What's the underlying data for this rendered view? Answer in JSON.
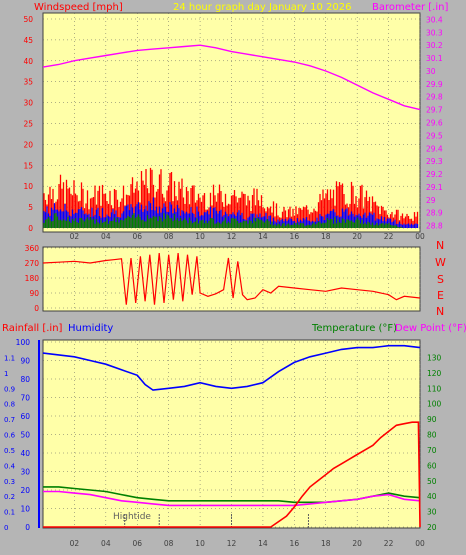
{
  "header": {
    "windspeed_label": "Windspeed [mph]",
    "graph_title": "24 hour graph day   January 10 2026",
    "barometer_label": "Barometer [.in]"
  },
  "wind_dir_compass": [
    "N",
    "W",
    "S",
    "E",
    "N"
  ],
  "bottom_header": {
    "rainfall_label": "Rainfall [.in]",
    "humidity_label": "Humidity",
    "temperature_label": "Temperature (°F)",
    "dewpoint_label": "Dew Point (°F)"
  },
  "annotations": {
    "hightide": "Hightide"
  },
  "colors": {
    "panel_bg": "#ffffa8",
    "frame": "#b5b5b5",
    "barometer": "#ff00ff",
    "wind_gust": "#ff0000",
    "wind_avg": "#0000ff",
    "wind_low": "#008000",
    "wind_dir": "#ff0000",
    "humidity": "#0000ff",
    "temperature": "#008000",
    "dewpoint": "#ff00ff",
    "rainfall": "#ff0000",
    "grid": "#606060"
  },
  "chart_data": [
    {
      "type": "line",
      "id": "wind-barometer",
      "x_ticks": [
        "02",
        "04",
        "06",
        "08",
        "10",
        "12",
        "14",
        "16",
        "18",
        "20",
        "22",
        "00"
      ],
      "y_left_ticks": [
        0,
        5,
        10,
        15,
        20,
        25,
        30,
        35,
        40,
        45,
        50
      ],
      "ylim_left": [
        0,
        50
      ],
      "y_right_ticks": [
        "28.8",
        "28.9",
        "29",
        "29.1",
        "29.2",
        "29.3",
        "29.4",
        "29.5",
        "29.6",
        "29.7",
        "29.8",
        "29.9",
        "30",
        "30.1",
        "30.2",
        "30.3",
        "30.4"
      ],
      "ylim_right": [
        28.75,
        30.45
      ],
      "xlim": [
        0,
        24
      ],
      "series": [
        {
          "name": "Windspeed [mph]",
          "axis": "left",
          "x": [
            0,
            1,
            2,
            3,
            4,
            5,
            6,
            7,
            8,
            9,
            10,
            11,
            12,
            13,
            14,
            15,
            16,
            17,
            18,
            19,
            20,
            21,
            22,
            23,
            24
          ],
          "gust": [
            9,
            10,
            9,
            8,
            9,
            8,
            10,
            12,
            11,
            9,
            8,
            8,
            9,
            7,
            8,
            4,
            4,
            5,
            8,
            9,
            9,
            6,
            4,
            3,
            3
          ],
          "avg": [
            4,
            5,
            4,
            4,
            4,
            4,
            5,
            6,
            5,
            4,
            4,
            4,
            4,
            3,
            3,
            2,
            2,
            2,
            3,
            4,
            4,
            3,
            2,
            1,
            1
          ],
          "low": [
            2,
            3,
            2,
            2,
            2,
            2,
            3,
            3,
            3,
            2,
            2,
            2,
            2,
            2,
            2,
            1,
            1,
            1,
            2,
            2,
            2,
            1,
            1,
            0,
            0
          ]
        },
        {
          "name": "Barometer [.in]",
          "axis": "right",
          "x": [
            0,
            1,
            2,
            3,
            4,
            5,
            6,
            7,
            8,
            9,
            10,
            11,
            12,
            13,
            14,
            15,
            16,
            17,
            18,
            19,
            20,
            21,
            22,
            23,
            24
          ],
          "values": [
            30.03,
            30.05,
            30.08,
            30.1,
            30.12,
            30.14,
            30.16,
            30.17,
            30.18,
            30.19,
            30.2,
            30.18,
            30.15,
            30.13,
            30.11,
            30.09,
            30.07,
            30.04,
            30.0,
            29.95,
            29.89,
            29.83,
            29.78,
            29.73,
            29.7
          ]
        }
      ]
    },
    {
      "type": "line",
      "id": "wind-direction",
      "x_ticks": [],
      "y_left_ticks": [
        0,
        90,
        180,
        270,
        360
      ],
      "ylim": [
        0,
        360
      ],
      "xlim": [
        0,
        24
      ],
      "series": [
        {
          "name": "",
          "x": [
            0,
            1,
            2,
            3,
            4,
            4.5,
            5,
            5.3,
            5.6,
            5.9,
            6.2,
            6.5,
            6.8,
            7.1,
            7.4,
            7.7,
            8.0,
            8.3,
            8.6,
            8.9,
            9.2,
            9.5,
            9.8,
            10,
            10.5,
            11,
            11.5,
            11.8,
            12.1,
            12.4,
            12.7,
            13,
            13.5,
            14,
            14.5,
            15,
            16,
            17,
            18,
            19,
            20,
            21,
            22,
            22.5,
            23,
            24
          ],
          "values": [
            270,
            275,
            280,
            270,
            285,
            290,
            295,
            20,
            300,
            30,
            310,
            40,
            320,
            20,
            330,
            30,
            320,
            50,
            330,
            40,
            320,
            80,
            310,
            90,
            70,
            85,
            110,
            300,
            60,
            280,
            80,
            50,
            60,
            110,
            90,
            130,
            120,
            110,
            100,
            120,
            110,
            100,
            80,
            50,
            70,
            60
          ]
        }
      ]
    },
    {
      "type": "line",
      "id": "rain-humidity-temp",
      "x_ticks": [
        "02",
        "04",
        "06",
        "08",
        "10",
        "12",
        "14",
        "16",
        "18",
        "20",
        "22",
        "00"
      ],
      "y_left_outer_ticks": [
        0,
        0.1,
        0.2,
        0.3,
        0.4,
        0.5,
        0.6,
        0.7,
        0.8,
        0.9,
        1,
        1.1
      ],
      "ylim_left_outer": [
        0,
        1.2
      ],
      "y_left_inner_ticks": [
        0,
        10,
        20,
        30,
        40,
        50,
        60,
        70,
        80,
        90,
        100
      ],
      "ylim_left_inner": [
        0,
        100
      ],
      "y_right_ticks": [
        20,
        30,
        40,
        50,
        60,
        70,
        80,
        90,
        100,
        110,
        120,
        130
      ],
      "ylim_right": [
        20,
        140
      ],
      "xlim": [
        0,
        24
      ],
      "hightide_marks": [
        5.2,
        7.4,
        12.0,
        16.9
      ],
      "series": [
        {
          "name": "Rainfall [.in]",
          "axis": "left_outer",
          "x": [
            0,
            14.5,
            15.5,
            16,
            16.5,
            17,
            17.5,
            18,
            18.5,
            19,
            19.5,
            20,
            20.5,
            21,
            21.5,
            22,
            22.5,
            23,
            23.5,
            23.9,
            24
          ],
          "values": [
            0,
            0,
            0.07,
            0.13,
            0.2,
            0.26,
            0.3,
            0.34,
            0.38,
            0.41,
            0.44,
            0.47,
            0.5,
            0.53,
            0.58,
            0.62,
            0.66,
            0.67,
            0.68,
            0.68,
            0
          ]
        },
        {
          "name": "Humidity",
          "axis": "left_inner",
          "x": [
            0,
            1,
            2,
            3,
            4,
            5,
            6,
            6.5,
            7,
            8,
            9,
            10,
            11,
            12,
            13,
            14,
            15,
            16,
            17,
            18,
            19,
            20,
            21,
            22,
            23,
            24
          ],
          "values": [
            94,
            93,
            92,
            90,
            88,
            85,
            82,
            77,
            74,
            75,
            76,
            78,
            76,
            75,
            76,
            78,
            84,
            89,
            92,
            94,
            96,
            97,
            97,
            98,
            98,
            97
          ]
        },
        {
          "name": "Temperature (°F)",
          "axis": "right",
          "x": [
            0,
            1,
            2,
            3,
            4,
            5,
            6,
            7,
            8,
            9,
            10,
            11,
            12,
            13,
            14,
            15,
            16,
            17,
            18,
            19,
            20,
            21,
            22,
            23,
            24
          ],
          "values": [
            46,
            46,
            45,
            44,
            43,
            41,
            39,
            38,
            37,
            37,
            37,
            37,
            37,
            37,
            37,
            37,
            36,
            36,
            36,
            37,
            38,
            40,
            42,
            40,
            39
          ]
        },
        {
          "name": "Dew Point (°F)",
          "axis": "right",
          "x": [
            0,
            1,
            2,
            3,
            4,
            5,
            6,
            7,
            8,
            9,
            10,
            11,
            12,
            13,
            14,
            15,
            16,
            17,
            18,
            19,
            20,
            21,
            22,
            23,
            24
          ],
          "values": [
            43,
            43,
            42,
            41,
            39,
            37,
            36,
            35,
            34,
            34,
            34,
            34,
            34,
            34,
            34,
            34,
            34,
            35,
            36,
            37,
            38,
            40,
            41,
            38,
            37
          ]
        }
      ]
    }
  ]
}
